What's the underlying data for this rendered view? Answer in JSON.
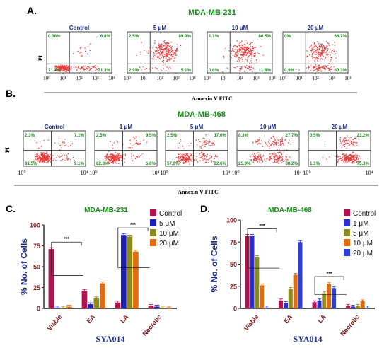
{
  "panel_letters": [
    "A.",
    "B.",
    "C.",
    "D."
  ],
  "colors": {
    "dot": "#e83c3c",
    "green": "#1a8a1a",
    "navy": "#1a2a8a",
    "maroon": "#7a1414",
    "control": "#b0124f",
    "s5": "#1f1fb5",
    "s10": "#8b8b1f",
    "s20": "#e06c10",
    "s1": "#2c2fd0",
    "s20b": "#2a3fd6"
  },
  "flow_A": {
    "title": "MDA-MB-231",
    "y_label": "PI",
    "x_label": "Annexin V FITC",
    "x_ticks": [
      "10⁰",
      "10¹",
      "10²",
      "10³",
      "10⁴"
    ],
    "plots": [
      {
        "title": "Control",
        "q": [
          "0.08%",
          "6.8%",
          "71.7%",
          "21.3%"
        ]
      },
      {
        "title": "5 μM",
        "q": [
          "2.5%",
          "89.3%",
          "2.9%",
          "5.1%"
        ]
      },
      {
        "title": "10 μM",
        "q": [
          "1.1%",
          "86.5%",
          "0.6%",
          "11.8%"
        ]
      },
      {
        "title": "20 μM",
        "q": [
          "0%",
          "68.7%",
          "0.9%",
          "30.3%"
        ]
      }
    ]
  },
  "flow_B": {
    "title": "MDA-MB-468",
    "y_label": "PI",
    "x_label": "Annexin V FITC",
    "x_tick_start": "10⁰",
    "x_tick_end": "10⁴",
    "plots": [
      {
        "title": "Control",
        "q": [
          "2.3%",
          "7.1%",
          "81.5%",
          "9.1%"
        ]
      },
      {
        "title": "1 μM",
        "q": [
          "2.5%",
          "9.5%",
          "82.3%",
          "5.8%"
        ]
      },
      {
        "title": "5 μM",
        "q": [
          "2.5%",
          "17.0%",
          "57.9%",
          "22.6%"
        ]
      },
      {
        "title": "10 μM",
        "q": [
          "8.3%",
          "27.7%",
          "25.9%",
          "38.2%"
        ]
      },
      {
        "title": "20 μM",
        "q": [
          "0.5%",
          "23.2%",
          "1.1%",
          "75.3%"
        ]
      }
    ]
  },
  "chart_data": [
    {
      "type": "bar",
      "title": "MDA-MB-231",
      "xlabel": "SYA014",
      "ylabel": "% No. of Cells",
      "categories": [
        "Viable",
        "EA",
        "LA",
        "Necrotic"
      ],
      "ylim": [
        0,
        100
      ],
      "yticks": [
        0,
        25,
        50,
        75,
        100
      ],
      "legend_position": "top-right",
      "significance": "***",
      "series": [
        {
          "name": "Control",
          "values": [
            71,
            21,
            7,
            3
          ]
        },
        {
          "name": "5 μM",
          "values": [
            1,
            5,
            88,
            2
          ]
        },
        {
          "name": "10 μM",
          "values": [
            1,
            12,
            86,
            1
          ]
        },
        {
          "name": "20 μM",
          "values": [
            2,
            30,
            68,
            0
          ]
        }
      ]
    },
    {
      "type": "bar",
      "title": "MDA-MB-468",
      "xlabel": "SYA014",
      "ylabel": "% No. of Cells",
      "categories": [
        "Viable",
        "EA",
        "LA",
        "Necrotic"
      ],
      "ylim": [
        0,
        100
      ],
      "yticks": [
        0,
        25,
        50,
        75,
        100
      ],
      "legend_position": "top-right",
      "significance": "***",
      "series": [
        {
          "name": "Control",
          "values": [
            82,
            9,
            7,
            3
          ]
        },
        {
          "name": "1 μM",
          "values": [
            82,
            6,
            9,
            2
          ]
        },
        {
          "name": "5 μM",
          "values": [
            58,
            22,
            17,
            3
          ]
        },
        {
          "name": "10 μM",
          "values": [
            26,
            38,
            28,
            8
          ]
        },
        {
          "name": "20 μM",
          "values": [
            1,
            75,
            23,
            1
          ]
        }
      ]
    }
  ]
}
